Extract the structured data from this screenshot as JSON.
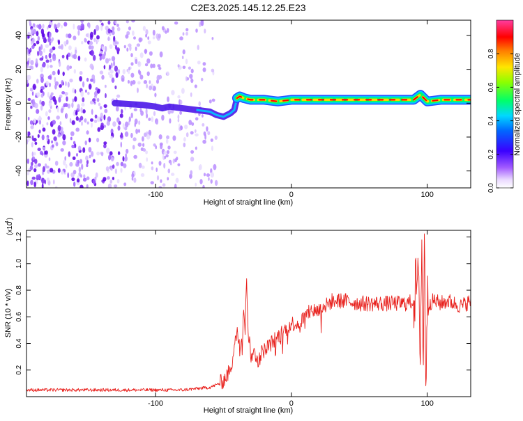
{
  "figure_title": "C2E3.2025.145.12.25.E23",
  "colors": {
    "spectrogram_band_core": "#ff0000",
    "spectrogram_band_mid": "#00ff66",
    "spectrogram_band_edge": "#00c8ff",
    "noise_dark": "#6a00e0",
    "noise_light": "#d8c4ff",
    "snr_line": "#e8201c",
    "axis": "#000000"
  },
  "chart_data": [
    {
      "type": "heatmap",
      "title": "C2E3.2025.145.12.25.E23",
      "xlabel": "Height of straight line (km)",
      "ylabel": "Frequency (Hz)",
      "xlim": [
        -195,
        132
      ],
      "ylim": [
        -50,
        49
      ],
      "x_ticks": [
        -100,
        0,
        100
      ],
      "x_tick_labels": [
        "-100",
        "0",
        "100"
      ],
      "y_ticks": [
        -40,
        -20,
        0,
        20,
        40
      ],
      "y_tick_labels": [
        "-40",
        "-20",
        "0",
        "20",
        "40"
      ],
      "colorbar": {
        "label": "Normalized spectral amplitude",
        "range": [
          0,
          1
        ],
        "ticks": [
          0.0,
          0.2,
          0.4,
          0.6,
          0.8
        ],
        "tick_labels": [
          "0.0",
          "0.2",
          "0.4",
          "0.6",
          "0.8"
        ],
        "colormap": "rainbow (white-purple-blue-cyan-green-yellow-red-magenta)"
      },
      "ridge_frequency_trace": {
        "x": [
          -130,
          -110,
          -100,
          -95,
          -90,
          -80,
          -70,
          -60,
          -55,
          -50,
          -45,
          -42,
          -40,
          -38,
          -35,
          -30,
          -20,
          -10,
          0,
          20,
          50,
          80,
          90,
          95,
          100,
          110,
          132
        ],
        "y": [
          0,
          -1,
          -2,
          -3,
          -2,
          -3,
          -4,
          -5,
          -7,
          -8,
          -6,
          -4,
          3,
          4,
          3,
          2,
          2,
          1,
          2,
          2,
          2,
          2,
          2,
          5,
          1,
          2,
          2
        ]
      },
      "noise_region_x": [
        -195,
        -65
      ],
      "grid": false
    },
    {
      "type": "line",
      "xlabel": "Height of straight line (km)",
      "ylabel": "SNR (10 * v/v)",
      "y_scale_label": "(x10",
      "y_scale_exponent": "4",
      "xlim": [
        -195,
        132
      ],
      "ylim": [
        0,
        1.25
      ],
      "x_ticks": [
        -100,
        0,
        100
      ],
      "x_tick_labels": [
        "-100",
        "0",
        "100"
      ],
      "y_ticks": [
        0.2,
        0.4,
        0.6,
        0.8,
        1.0,
        1.2
      ],
      "y_tick_labels": [
        "0.2",
        "0.4",
        "0.6",
        "0.8",
        "1.0",
        "1.2"
      ],
      "series": [
        {
          "x": [
            -195,
            -150,
            -100,
            -80,
            -70,
            -60,
            -55,
            -50,
            -45,
            -42,
            -40,
            -38,
            -36,
            -35,
            -34,
            -33,
            -32,
            -30,
            -25,
            -20,
            -15,
            -10,
            -5,
            0,
            5,
            10,
            15,
            20,
            25,
            30,
            35,
            40,
            50,
            60,
            70,
            80,
            85,
            90,
            93,
            95,
            96,
            97,
            98,
            99,
            100,
            105,
            110,
            115,
            120,
            125,
            132
          ],
          "y": [
            0.05,
            0.05,
            0.05,
            0.05,
            0.06,
            0.07,
            0.09,
            0.12,
            0.2,
            0.35,
            0.5,
            0.4,
            0.45,
            0.7,
            0.5,
            0.95,
            0.5,
            0.35,
            0.3,
            0.35,
            0.4,
            0.45,
            0.5,
            0.55,
            0.55,
            0.6,
            0.65,
            0.65,
            0.68,
            0.72,
            0.72,
            0.72,
            0.7,
            0.7,
            0.7,
            0.7,
            0.7,
            0.72,
            0.9,
            0.4,
            1.2,
            0.2,
            1.25,
            0.1,
            0.7,
            0.72,
            0.7,
            0.72,
            0.7,
            0.68,
            0.72
          ]
        }
      ],
      "grid": false
    }
  ]
}
